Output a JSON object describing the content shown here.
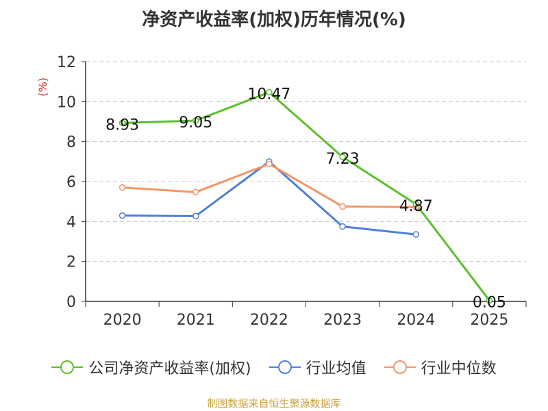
{
  "chart_data": {
    "type": "line",
    "title": "净资产收益率(加权)历年情况(%)",
    "ylabel": "(%)",
    "xlabel": "",
    "ylim": [
      0,
      12
    ],
    "yticks": [
      0,
      2,
      4,
      6,
      8,
      10,
      12
    ],
    "categories": [
      "2020",
      "2021",
      "2022",
      "2023",
      "2024",
      "2025"
    ],
    "grid": true,
    "legend_position": "bottom",
    "series": [
      {
        "name": "公司净资产收益率(加权)",
        "color": "#5cbf2a",
        "values": [
          8.93,
          9.05,
          10.47,
          7.23,
          4.87,
          0.05
        ],
        "labels": [
          "8.93",
          "9.05",
          "10.47",
          "7.23",
          "4.87",
          "0.05"
        ]
      },
      {
        "name": "行业均值",
        "color": "#4e7fdb",
        "values": [
          4.3,
          4.27,
          7.0,
          3.75,
          3.35,
          null
        ]
      },
      {
        "name": "行业中位数",
        "color": "#f59466",
        "values": [
          5.7,
          5.47,
          6.88,
          4.75,
          4.72,
          null
        ]
      }
    ]
  },
  "footer": "制图数据来自恒生聚源数据库"
}
